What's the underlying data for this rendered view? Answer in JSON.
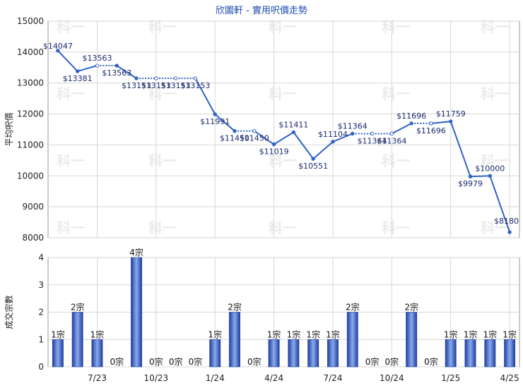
{
  "chart_data": [
    {
      "type": "line",
      "title": "欣圖軒 - 實用呎價走勢",
      "ylabel": "平均呎價",
      "ylim": [
        8000,
        15000
      ],
      "yticks": [
        "15000",
        "14000",
        "13000",
        "12000",
        "11000",
        "10000",
        "9000",
        "8000"
      ],
      "grid": true,
      "watermark": "科一",
      "series": [
        {
          "points": [
            {
              "x": 0,
              "y": 14047,
              "label": "$14047",
              "filled": false
            },
            {
              "x": 1,
              "y": 13381,
              "label": "$13381",
              "filled": false
            },
            {
              "x": 2,
              "y": 13563,
              "label": "$13563",
              "filled": true
            },
            {
              "x": 3,
              "y": 13563,
              "label": "$13563",
              "filled": false
            },
            {
              "x": 4,
              "y": 13153,
              "label": "$13153",
              "filled": false
            },
            {
              "x": 5,
              "y": 13153,
              "label": "$13153",
              "filled": true
            },
            {
              "x": 6,
              "y": 13153,
              "label": "$13153",
              "filled": true
            },
            {
              "x": 7,
              "y": 13153,
              "label": "$13153",
              "filled": true
            },
            {
              "x": 8,
              "y": 11991,
              "label": "$11991",
              "filled": false
            },
            {
              "x": 9,
              "y": 11450,
              "label": "$11450",
              "filled": false
            },
            {
              "x": 10,
              "y": 11450,
              "label": "$11450",
              "filled": true
            },
            {
              "x": 11,
              "y": 11019,
              "label": "$11019",
              "filled": false
            },
            {
              "x": 12,
              "y": 11411,
              "label": "$11411",
              "filled": false
            },
            {
              "x": 13,
              "y": 10551,
              "label": "$10551",
              "filled": false
            },
            {
              "x": 14,
              "y": 11104,
              "label": "$11104",
              "filled": false
            },
            {
              "x": 15,
              "y": 11364,
              "label": "$11364",
              "filled": false
            },
            {
              "x": 16,
              "y": 11364,
              "label": "$11364",
              "filled": true
            },
            {
              "x": 17,
              "y": 11364,
              "label": "$11364",
              "filled": true
            },
            {
              "x": 18,
              "y": 11696,
              "label": "$11696",
              "filled": false
            },
            {
              "x": 19,
              "y": 11696,
              "label": "$11696",
              "filled": true
            },
            {
              "x": 20,
              "y": 11759,
              "label": "$11759",
              "filled": false
            },
            {
              "x": 21,
              "y": 9979,
              "label": "$9979",
              "filled": false
            },
            {
              "x": 22,
              "y": 10000,
              "label": "$10000",
              "filled": false
            },
            {
              "x": 23,
              "y": 8180,
              "label": "$8180",
              "filled": false
            }
          ]
        }
      ]
    },
    {
      "type": "bar",
      "ylabel": "成交宗數",
      "ylim": [
        0,
        4
      ],
      "yticks": [
        "4",
        "3",
        "2",
        "1",
        "0"
      ],
      "categories": [
        "",
        "",
        "7/23",
        "",
        "",
        "10/23",
        "",
        "",
        "1/24",
        "",
        "",
        "4/24",
        "",
        "",
        "7/24",
        "",
        "",
        "10/24",
        "",
        "",
        "1/25",
        "",
        "",
        "4/25"
      ],
      "values": [
        1,
        2,
        1,
        0,
        4,
        0,
        0,
        0,
        1,
        2,
        0,
        1,
        1,
        1,
        1,
        2,
        0,
        0,
        2,
        0,
        1,
        1,
        1,
        1
      ],
      "value_labels": [
        "1宗",
        "2宗",
        "1宗",
        "0宗",
        "4宗",
        "0宗",
        "0宗",
        "0宗",
        "1宗",
        "2宗",
        "0宗",
        "1宗",
        "1宗",
        "1宗",
        "1宗",
        "2宗",
        "0宗",
        "0宗",
        "2宗",
        "0宗",
        "1宗",
        "1宗",
        "1宗",
        "1宗"
      ],
      "x_tick_labels": [
        "7/23",
        "10/23",
        "1/24",
        "4/24",
        "7/24",
        "10/24",
        "1/25",
        "4/25"
      ],
      "grid": true
    }
  ],
  "colors": {
    "line": "#3163c8",
    "bar_dark": "#1f3f9f",
    "bar_light": "#8aa9ec",
    "grid": "#d6d6d6",
    "title": "#1f4fb3",
    "watermark": "#ebebeb"
  }
}
